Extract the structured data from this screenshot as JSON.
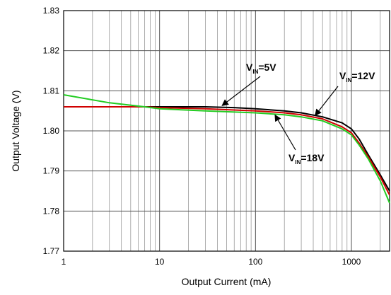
{
  "chart_data": {
    "type": "line",
    "title": "",
    "xlabel": "Output Current (mA)",
    "ylabel": "Output Voltage (V)",
    "xscale": "log",
    "xlim": [
      1,
      2500
    ],
    "ylim": [
      1.77,
      1.83
    ],
    "grid": true,
    "xticks": [
      "1",
      "10",
      "100",
      "1000"
    ],
    "yticks": [
      "1.77",
      "1.78",
      "1.79",
      "1.80",
      "1.81",
      "1.82",
      "1.83"
    ],
    "annotations": [
      {
        "text": "V",
        "sub": "IN",
        "suffix": "=5V",
        "series": "VIN=5V"
      },
      {
        "text": "V",
        "sub": "IN",
        "suffix": "=12V",
        "series": "VIN=12V"
      },
      {
        "text": "V",
        "sub": "IN",
        "suffix": "=18V",
        "series": "VIN=18V"
      }
    ],
    "series": [
      {
        "name": "VIN=5V",
        "color": "#000000",
        "points": [
          [
            1,
            1.806
          ],
          [
            7,
            1.806
          ],
          [
            10,
            1.806
          ],
          [
            30,
            1.806
          ],
          [
            60,
            1.8058
          ],
          [
            100,
            1.8055
          ],
          [
            200,
            1.805
          ],
          [
            300,
            1.8045
          ],
          [
            500,
            1.8035
          ],
          [
            800,
            1.802
          ],
          [
            1000,
            1.8005
          ],
          [
            1200,
            1.798
          ],
          [
            1500,
            1.794
          ],
          [
            2000,
            1.789
          ],
          [
            2500,
            1.785
          ]
        ]
      },
      {
        "name": "VIN=12V",
        "color": "#d00000",
        "points": [
          [
            1,
            1.806
          ],
          [
            7,
            1.806
          ],
          [
            10,
            1.8058
          ],
          [
            30,
            1.8055
          ],
          [
            60,
            1.8052
          ],
          [
            100,
            1.805
          ],
          [
            200,
            1.8045
          ],
          [
            300,
            1.804
          ],
          [
            500,
            1.803
          ],
          [
            800,
            1.801
          ],
          [
            1000,
            1.7995
          ],
          [
            1200,
            1.797
          ],
          [
            1500,
            1.7935
          ],
          [
            2000,
            1.7885
          ],
          [
            2500,
            1.784
          ]
        ]
      },
      {
        "name": "VIN=18V",
        "color": "#22cc22",
        "points": [
          [
            1,
            1.809
          ],
          [
            3,
            1.807
          ],
          [
            7,
            1.806
          ],
          [
            10,
            1.8055
          ],
          [
            30,
            1.805
          ],
          [
            100,
            1.8045
          ],
          [
            200,
            1.804
          ],
          [
            300,
            1.8035
          ],
          [
            500,
            1.8025
          ],
          [
            800,
            1.8005
          ],
          [
            1000,
            1.799
          ],
          [
            1200,
            1.7965
          ],
          [
            1500,
            1.793
          ],
          [
            2000,
            1.7875
          ],
          [
            2500,
            1.782
          ]
        ]
      }
    ]
  }
}
